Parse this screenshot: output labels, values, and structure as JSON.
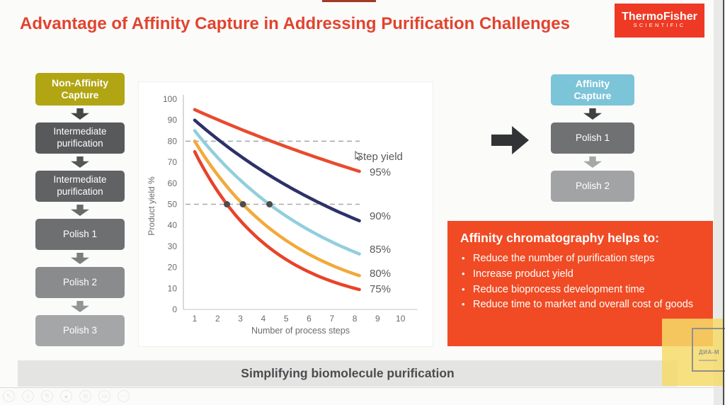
{
  "slide": {
    "title": "Advantage of Affinity Capture in Addressing Purification Challenges",
    "footer": "Simplifying biomolecule purification"
  },
  "logo": {
    "line1": "ThermoFisher",
    "line2": "SCIENTIFIC",
    "bg": "#ee3a25"
  },
  "colors": {
    "title_red": "#e2432e",
    "panel_orange": "#f04b24",
    "non_affinity_olive": "#b1a513",
    "affinity_blue": "#7cc4d8",
    "footer_gray": "#e4e4e3"
  },
  "left_flow": {
    "steps": [
      {
        "label": "Non-Affinity Capture",
        "color": "#b1a513"
      },
      {
        "label": "Intermediate purification",
        "color": "#58595b"
      },
      {
        "label": "Intermediate purification",
        "color": "#616264"
      },
      {
        "label": "Polish 1",
        "color": "#6e6f71"
      },
      {
        "label": "Polish 2",
        "color": "#8a8b8d"
      },
      {
        "label": "Polish 3",
        "color": "#a5a6a8"
      }
    ]
  },
  "right_flow": {
    "steps": [
      {
        "label": "Affinity Capture",
        "color": "#7cc4d8"
      },
      {
        "label": "Polish 1",
        "color": "#707173"
      },
      {
        "label": "Polish 2",
        "color": "#a2a3a5"
      }
    ]
  },
  "benefits": {
    "title": "Affinity chromatography helps to:",
    "items": [
      "Reduce the number of purification steps",
      "Increase product yield",
      "Reduce bioprocess development time",
      "Reduce time to market and overall cost of goods"
    ]
  },
  "chart_data": {
    "type": "line",
    "title": "",
    "xlabel": "Number of process steps",
    "ylabel": "Product yield %",
    "legend_title": "Step yield",
    "xlim": [
      0.5,
      10.5
    ],
    "ylim": [
      0,
      100
    ],
    "x_ticks": [
      1,
      2,
      3,
      4,
      5,
      6,
      7,
      8,
      9,
      10
    ],
    "y_ticks": [
      0,
      10,
      20,
      30,
      40,
      50,
      60,
      70,
      80,
      90,
      100
    ],
    "x_drawn": [
      1,
      8.2
    ],
    "grid": false,
    "reference_lines_y": [
      80,
      50
    ],
    "x": [
      1,
      2,
      3,
      4,
      5,
      6,
      7,
      8
    ],
    "series": [
      {
        "name": "95%",
        "step_yield": 0.95,
        "color": "#e84b2e",
        "values": [
          95.0,
          90.3,
          85.7,
          81.5,
          77.4,
          73.5,
          69.8,
          66.3
        ]
      },
      {
        "name": "90%",
        "step_yield": 0.9,
        "color": "#2e3168",
        "values": [
          90.0,
          81.0,
          72.9,
          65.6,
          59.0,
          53.1,
          47.8,
          43.0
        ]
      },
      {
        "name": "85%",
        "step_yield": 0.85,
        "color": "#92cedd",
        "values": [
          85.0,
          72.3,
          61.4,
          52.2,
          44.4,
          37.7,
          32.1,
          27.2
        ]
      },
      {
        "name": "80%",
        "step_yield": 0.8,
        "color": "#f2a93b",
        "values": [
          80.0,
          64.0,
          51.2,
          41.0,
          32.8,
          26.2,
          21.0,
          16.8
        ]
      },
      {
        "name": "75%",
        "step_yield": 0.75,
        "color": "#e8432a",
        "values": [
          75.0,
          56.3,
          42.2,
          31.6,
          23.7,
          17.8,
          13.3,
          10.0
        ]
      }
    ],
    "markers_at_y50": [
      {
        "series": "75%",
        "x": 2.41,
        "y": 50
      },
      {
        "series": "80%",
        "x": 3.11,
        "y": 50
      },
      {
        "series": "85%",
        "x": 4.27,
        "y": 50
      }
    ],
    "marker_color": "#4b4c4e"
  },
  "watermark": {
    "text": "ДИА-М"
  },
  "toolbar": {
    "icons": [
      {
        "name": "pointer",
        "glyph": "↖"
      },
      {
        "name": "info",
        "glyph": "i"
      },
      {
        "name": "pen",
        "glyph": "✎"
      },
      {
        "name": "record",
        "glyph": "●"
      },
      {
        "name": "magnifier",
        "glyph": "◎"
      },
      {
        "name": "screen",
        "glyph": "▭"
      },
      {
        "name": "more",
        "glyph": "⋯"
      }
    ]
  }
}
